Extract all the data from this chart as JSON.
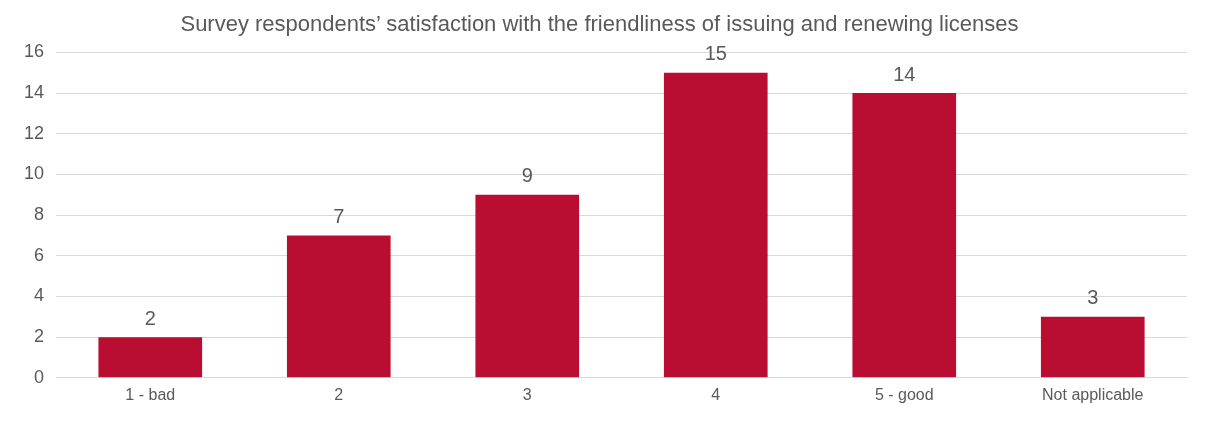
{
  "chart_data": {
    "type": "bar",
    "title": "Survey respondents’ satisfaction with the friendliness of issuing and renewing licenses",
    "categories": [
      "1 - bad",
      "2",
      "3",
      "4",
      "5 - good",
      "Not applicable"
    ],
    "values": [
      2,
      7,
      9,
      15,
      14,
      3
    ],
    "color": "#b90e31",
    "ylim": [
      0,
      16
    ],
    "yticks": [
      0,
      2,
      4,
      6,
      8,
      10,
      12,
      14,
      16
    ],
    "grid": "y",
    "data_labels": true,
    "legend": false
  }
}
